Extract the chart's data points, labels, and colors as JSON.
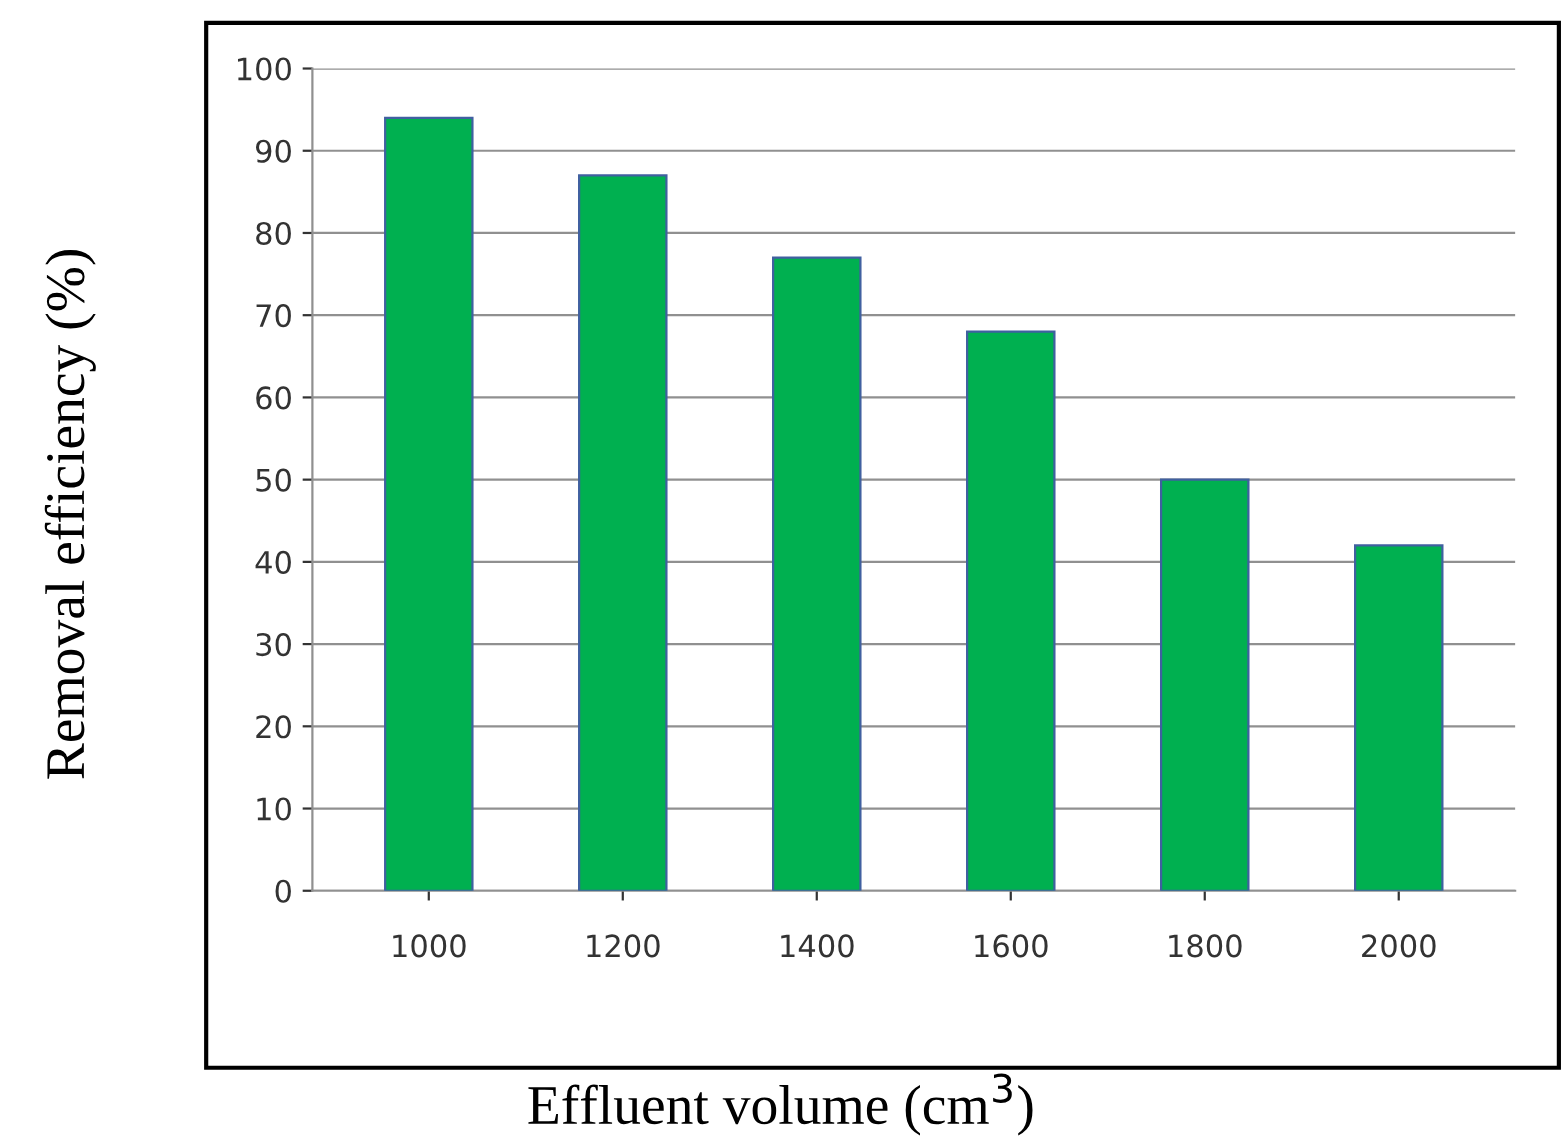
{
  "chart_data": {
    "type": "bar",
    "xlabel": "Effluent volume (cm$^{3}$)",
    "ylabel": "Removal efficiency (%)",
    "categories": [
      "1000",
      "1200",
      "1400",
      "1600",
      "1800",
      "2000"
    ],
    "values": [
      94,
      87,
      77,
      68,
      50,
      42
    ],
    "color": "#00b050",
    "ylim": [
      0,
      100
    ],
    "yticks": [
      0,
      10,
      20,
      30,
      40,
      50,
      60,
      70,
      80,
      90,
      100
    ],
    "grid": "y"
  }
}
